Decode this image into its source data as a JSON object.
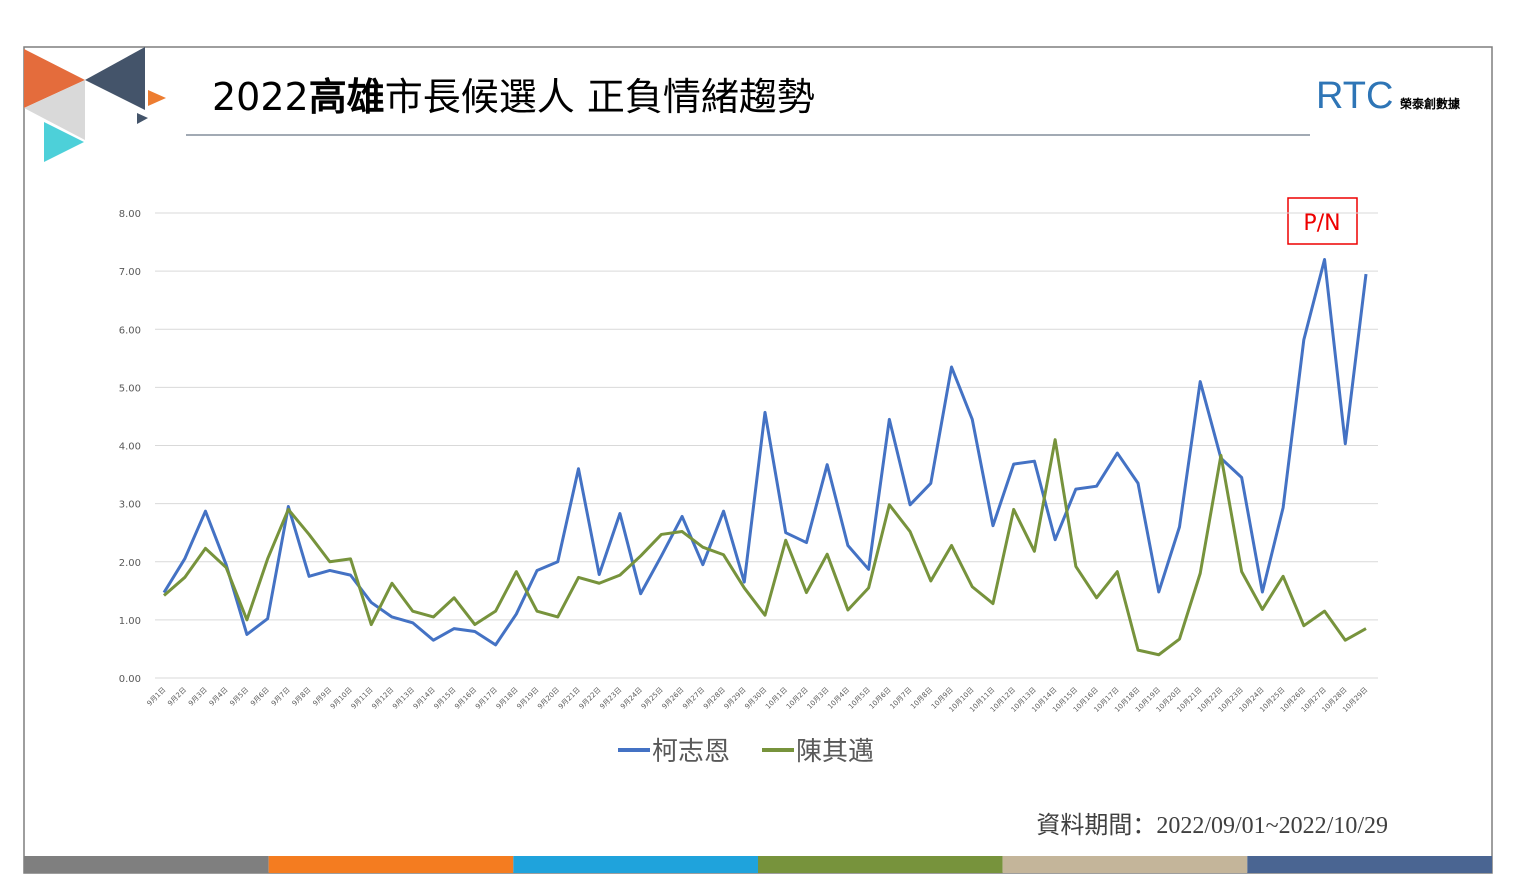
{
  "header": {
    "title": [
      {
        "text": "2022"
      },
      {
        "text": "高雄",
        "bold": true
      },
      {
        "text": "市長候選人 正負情緒趨勢"
      }
    ]
  },
  "logo": {
    "mark": "RTC",
    "name": "榮泰創數據"
  },
  "footer": "資料期間：2022/09/01~2022/10/29",
  "chart_data": {
    "type": "line",
    "annotation": "P/N",
    "categories": [
      "9月1日",
      "9月2日",
      "9月3日",
      "9月4日",
      "9月5日",
      "9月6日",
      "9月7日",
      "9月8日",
      "9月9日",
      "9月10日",
      "9月11日",
      "9月12日",
      "9月13日",
      "9月14日",
      "9月15日",
      "9月16日",
      "9月17日",
      "9月18日",
      "9月19日",
      "9月20日",
      "9月21日",
      "9月22日",
      "9月23日",
      "9月24日",
      "9月25日",
      "9月26日",
      "9月27日",
      "9月28日",
      "9月29日",
      "9月30日",
      "10月1日",
      "10月2日",
      "10月3日",
      "10月4日",
      "10月5日",
      "10月6日",
      "10月7日",
      "10月8日",
      "10月9日",
      "10月10日",
      "10月11日",
      "10月12日",
      "10月13日",
      "10月14日",
      "10月15日",
      "10月16日",
      "10月17日",
      "10月18日",
      "10月19日",
      "10月20日",
      "10月21日",
      "10月22日",
      "10月23日",
      "10月24日",
      "10月25日",
      "10月26日",
      "10月27日",
      "10月28日",
      "10月29日"
    ],
    "series": [
      {
        "name": "柯志恩",
        "color": "#4472c4",
        "values": [
          1.47,
          2.05,
          2.87,
          1.95,
          0.75,
          1.02,
          2.95,
          1.75,
          1.85,
          1.77,
          1.3,
          1.05,
          0.95,
          0.65,
          0.85,
          0.8,
          0.57,
          1.1,
          1.85,
          2.0,
          3.6,
          1.78,
          2.83,
          1.45,
          2.1,
          2.78,
          1.95,
          2.87,
          1.65,
          4.57,
          2.5,
          2.33,
          3.67,
          2.28,
          1.87,
          4.45,
          2.98,
          3.35,
          5.35,
          4.45,
          2.62,
          3.68,
          3.73,
          2.38,
          3.25,
          3.3,
          3.87,
          3.35,
          1.48,
          2.6,
          5.1,
          3.78,
          3.45,
          1.48,
          2.93,
          5.82,
          7.2,
          4.03,
          6.95
        ]
      },
      {
        "name": "陳其邁",
        "color": "#77933c",
        "values": [
          1.42,
          1.73,
          2.23,
          1.9,
          1.0,
          2.05,
          2.9,
          2.47,
          2.0,
          2.05,
          0.92,
          1.63,
          1.15,
          1.05,
          1.38,
          0.92,
          1.15,
          1.83,
          1.15,
          1.05,
          1.73,
          1.63,
          1.77,
          2.1,
          2.47,
          2.52,
          2.25,
          2.12,
          1.55,
          1.08,
          2.37,
          1.47,
          2.13,
          1.17,
          1.55,
          2.98,
          2.52,
          1.67,
          2.28,
          1.57,
          1.28,
          2.9,
          2.18,
          4.1,
          1.92,
          1.38,
          1.83,
          0.48,
          0.4,
          0.67,
          1.8,
          3.83,
          1.83,
          1.18,
          1.75,
          0.9,
          1.15,
          0.65,
          0.85
        ]
      }
    ],
    "ylim": [
      0,
      8
    ],
    "yticks": [
      {
        "value": 0,
        "label": "0.00"
      },
      {
        "value": 1,
        "label": "1.00"
      },
      {
        "value": 2,
        "label": "2.00"
      },
      {
        "value": 3,
        "label": "3.00"
      },
      {
        "value": 4,
        "label": "4.00"
      },
      {
        "value": 5,
        "label": "5.00"
      },
      {
        "value": 6,
        "label": "6.00"
      },
      {
        "value": 7,
        "label": "7.00"
      },
      {
        "value": 8,
        "label": "8.00"
      }
    ],
    "grid": true
  }
}
